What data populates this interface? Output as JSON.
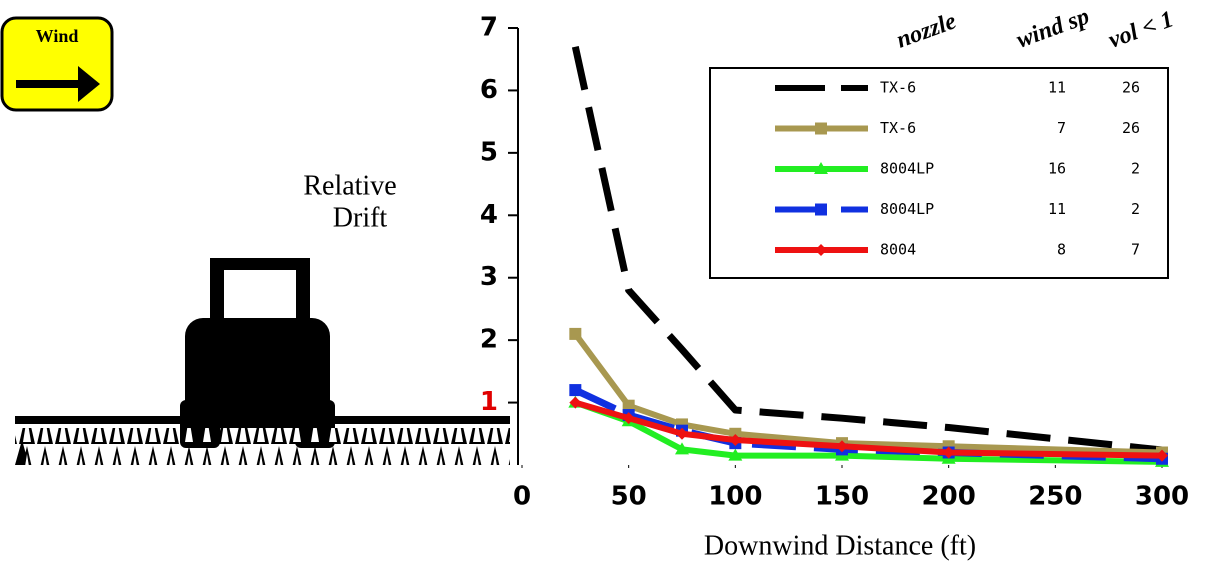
{
  "chart_data": {
    "type": "line",
    "wind_sign": "Wind",
    "ylabel_lines": [
      "Relative",
      "Drift"
    ],
    "xlabel": "Downwind Distance (ft)",
    "legend_headers": [
      "nozzle",
      "wind sp",
      "vol < 1"
    ],
    "x": [
      25,
      50,
      75,
      100,
      150,
      200,
      300
    ],
    "xlim": [
      0,
      300
    ],
    "xticks": [
      0,
      50,
      100,
      150,
      200,
      250,
      300
    ],
    "ylim": [
      0,
      7
    ],
    "yticks": [
      1,
      2,
      3,
      4,
      5,
      6,
      7
    ],
    "highlight_ytick": {
      "value": 1,
      "color": "#e00000"
    },
    "legend_position": "upper right",
    "series": [
      {
        "name": "TX-6",
        "wind": 11,
        "vol": 26,
        "color": "#000000",
        "dash": true,
        "marker": "none",
        "values": [
          6.7,
          2.8,
          1.85,
          0.88,
          0.75,
          0.6,
          0.24
        ]
      },
      {
        "name": "TX-6",
        "wind": 7,
        "vol": 26,
        "color": "#a89850",
        "dash": false,
        "marker": "square",
        "values": [
          2.1,
          0.95,
          0.65,
          0.5,
          0.35,
          0.3,
          0.2
        ]
      },
      {
        "name": "8004LP",
        "wind": 16,
        "vol": 2,
        "color": "#22ee22",
        "dash": false,
        "marker": "triangle",
        "values": [
          1.0,
          0.7,
          0.25,
          0.15,
          0.15,
          0.1,
          0.05
        ]
      },
      {
        "name": "8004LP",
        "wind": 11,
        "vol": 2,
        "color": "#1030e0",
        "dash": true,
        "marker": "square",
        "values": [
          1.2,
          0.8,
          0.55,
          0.35,
          0.25,
          0.2,
          0.1
        ]
      },
      {
        "name": "8004",
        "wind": 8,
        "vol": 7,
        "color": "#ee1111",
        "dash": false,
        "marker": "diamond",
        "values": [
          1.0,
          0.75,
          0.5,
          0.4,
          0.3,
          0.2,
          0.15
        ]
      }
    ]
  }
}
